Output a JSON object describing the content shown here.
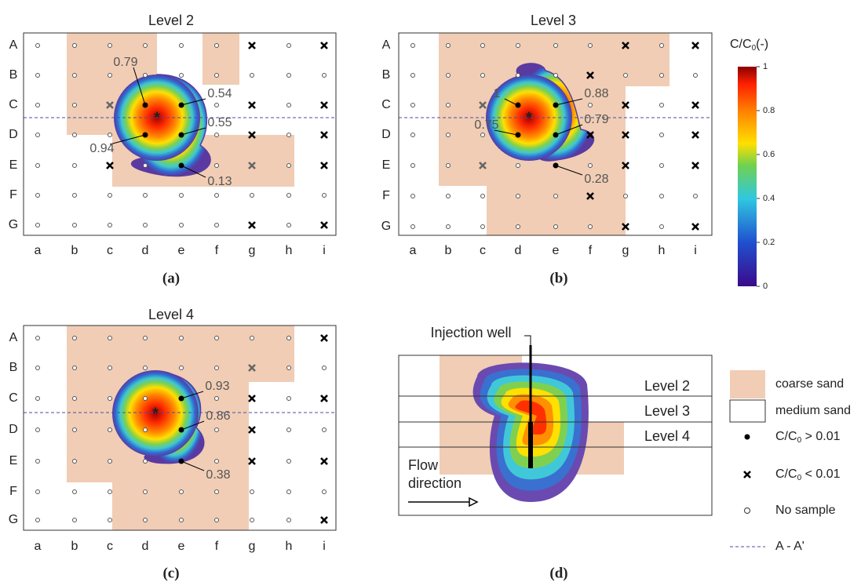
{
  "panels": [
    {
      "title": "Level 2",
      "label": "(a)",
      "rows": [
        "A",
        "B",
        "C",
        "D",
        "E",
        "F",
        "G"
      ],
      "cols": [
        "a",
        "b",
        "c",
        "d",
        "e",
        "f",
        "g",
        "h",
        "i"
      ],
      "values": [
        0.79,
        0.54,
        0.55,
        0.94,
        0.13
      ]
    },
    {
      "title": "Level 3",
      "label": "(b)",
      "rows": [
        "A",
        "B",
        "C",
        "D",
        "E",
        "F",
        "G"
      ],
      "cols": [
        "a",
        "b",
        "c",
        "d",
        "e",
        "f",
        "g",
        "h",
        "i"
      ],
      "values": [
        1,
        0.88,
        0.75,
        0.79,
        0.28
      ]
    },
    {
      "title": "Level 4",
      "label": "(c)",
      "rows": [
        "A",
        "B",
        "C",
        "D",
        "E",
        "F",
        "G"
      ],
      "cols": [
        "a",
        "b",
        "c",
        "d",
        "e",
        "f",
        "g",
        "h",
        "i"
      ],
      "values": [
        0.93,
        0.86,
        0.38
      ]
    }
  ],
  "colorbar": {
    "title": "C/C",
    "title_sub": "0",
    "title_suffix": "(-)",
    "ticks": [
      0,
      0.2,
      0.4,
      0.6,
      0.8,
      1
    ]
  },
  "schematic": {
    "label": "(d)",
    "well": "Injection well",
    "levels": [
      "Level 2",
      "Level 3",
      "Level 4"
    ],
    "flow": [
      "Flow",
      "direction"
    ]
  },
  "legend": {
    "coarse": "coarse sand",
    "medium": "medium sand",
    "detected": {
      "text": "C/C",
      "sub": "0",
      "suffix": " > 0.01"
    },
    "undetected": {
      "text": "C/C",
      "sub": "0",
      "suffix": " < 0.01"
    },
    "none": "No sample",
    "section": "A - A'"
  }
}
